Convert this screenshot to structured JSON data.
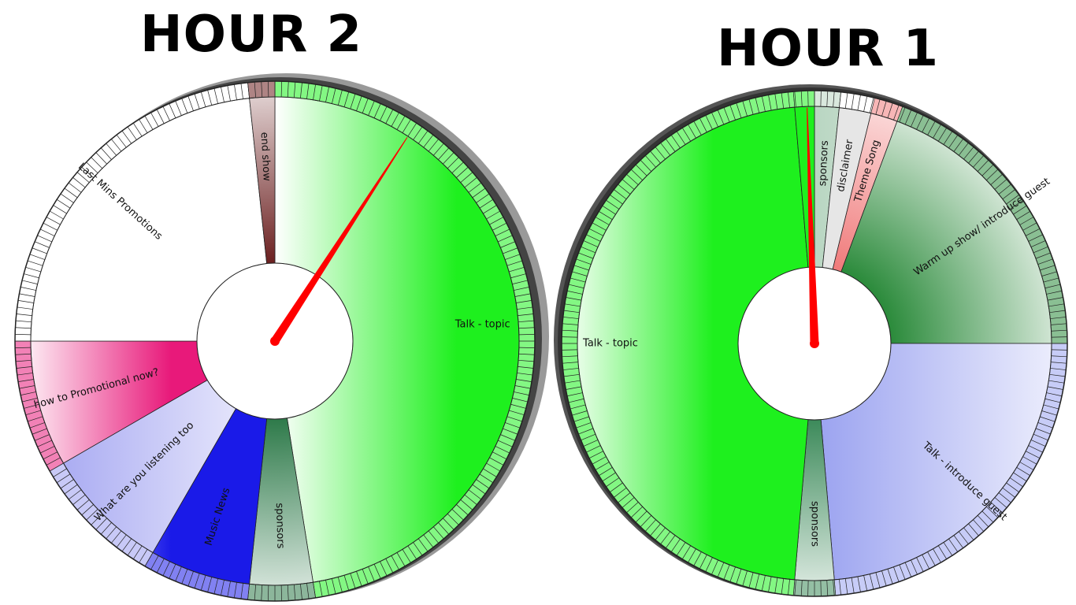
{
  "chart_data": [
    {
      "type": "pie",
      "title": "HOUR 2",
      "unit": "minutes",
      "total": 60,
      "start_minute": 0,
      "hand_minute": 5.5,
      "segments": [
        {
          "label": "Talk - topic",
          "start": 0,
          "end": 28.5,
          "color": "#1ef01e",
          "gradient": "bands"
        },
        {
          "label": "sponsors",
          "start": 28.5,
          "end": 31,
          "color": "#2e7a4a",
          "gradient": "radial-dark"
        },
        {
          "label": "Music News",
          "start": 31,
          "end": 35,
          "color": "#1a1ae8",
          "gradient": "bands"
        },
        {
          "label": "What are you listening too",
          "start": 35,
          "end": 40,
          "color": "#9b9df0",
          "gradient": "bands-light"
        },
        {
          "label": "how to Promotional now?",
          "start": 40,
          "end": 45,
          "color": "#e8197a",
          "gradient": "bands"
        },
        {
          "label": "Last Mins Promotions",
          "start": 45,
          "end": 59,
          "color": "#ffffff",
          "gradient": "none"
        },
        {
          "label": "end show",
          "start": 59,
          "end": 60,
          "color": "#6b2020",
          "gradient": "radial-dark"
        }
      ]
    },
    {
      "type": "pie",
      "title": "HOUR 1",
      "unit": "minutes",
      "total": 60,
      "start_minute": 0,
      "hand_minute": 59.7,
      "segments": [
        {
          "label": "sponsors",
          "start": 0,
          "end": 1,
          "color": "#b9d6c2",
          "gradient": "bands-light"
        },
        {
          "label": "disclaimer",
          "start": 1,
          "end": 2.3,
          "color": "#e6e6e6",
          "gradient": "none"
        },
        {
          "label": "Theme Song",
          "start": 2.3,
          "end": 3.4,
          "color": "#f07a7a",
          "gradient": "radial-light"
        },
        {
          "label": "Warm up show/ introduce guest",
          "start": 3.4,
          "end": 15,
          "color": "#2a8a3a",
          "gradient": "radial-dark"
        },
        {
          "label": "Talk - introduce guest",
          "start": 15,
          "end": 29.2,
          "color": "#9aa2f0",
          "gradient": "bands-light"
        },
        {
          "label": "sponsors",
          "start": 29.2,
          "end": 30.8,
          "color": "#3c8a5a",
          "gradient": "radial-dark"
        },
        {
          "label": "Talk - topic",
          "start": 30.8,
          "end": 59.2,
          "color": "#1ef01e",
          "gradient": "bands"
        },
        {
          "label": "",
          "start": 59.2,
          "end": 60,
          "color": "#1ef01e",
          "gradient": "bands"
        }
      ]
    }
  ]
}
